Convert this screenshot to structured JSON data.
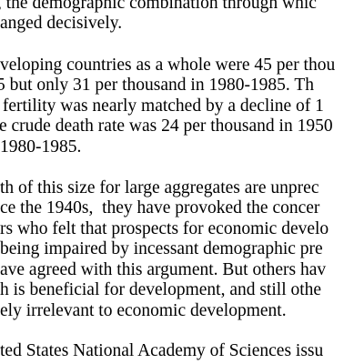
{
  "document": {
    "paragraphs": [
      {
        "lines": [
          ", the demographic combination through whic",
          "anged decisively."
        ]
      },
      {
        "lines": [
          "veloping countries as a whole were 45 per thou",
          "5 but only 31 per thousand in 1980-1985. Th",
          " fertility was nearly matched by a decline of 1",
          "e crude death rate was 24 per thousand in 1950",
          "1980-1985."
        ]
      },
      {
        "lines": [
          "th of this size for large aggregates are unprec",
          "ce the 1940s,  they have provoked the concer",
          "rs who felt that prospects for economic develo",
          "being impaired by incessant demographic pre",
          "ave agreed with this argument. But others hav",
          "h is beneficial for development, and still othe",
          "ely irrelevant to economic development."
        ]
      },
      {
        "lines": [
          "ted States National Academy of Sciences issu"
        ]
      }
    ]
  }
}
